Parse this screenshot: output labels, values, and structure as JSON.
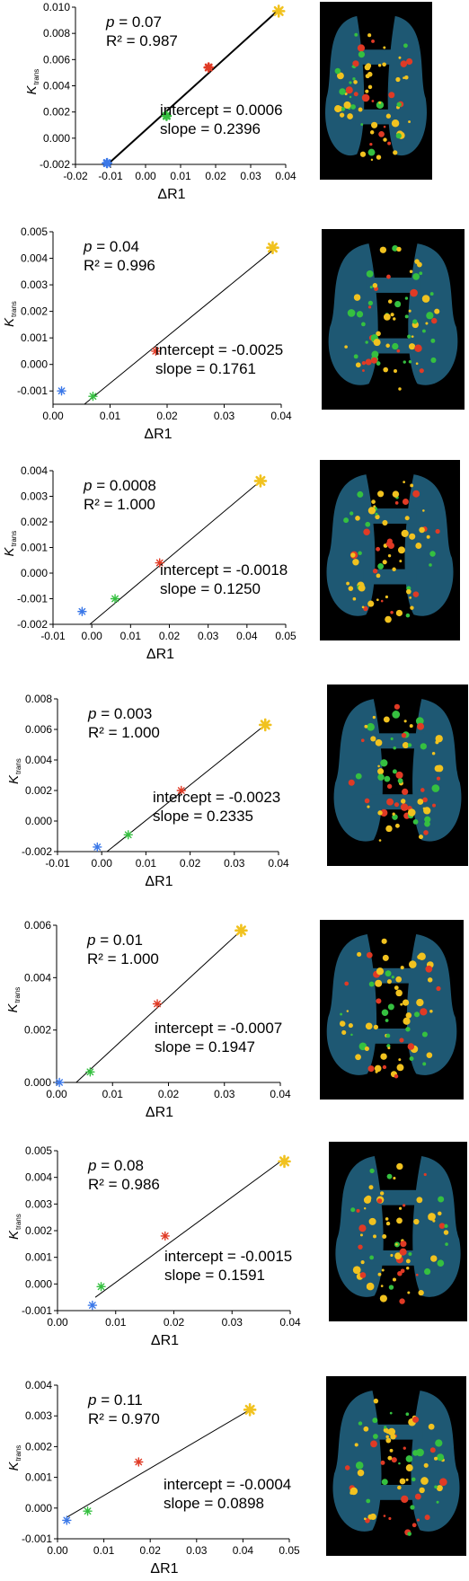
{
  "colors": {
    "blue": "#3b78e8",
    "green": "#35c040",
    "red": "#e03a25",
    "yellow": "#f1c21f",
    "brain_base": "#1e5873"
  },
  "chart_data": [
    {
      "type": "scatter",
      "xlabel": "ΔR1",
      "ylabel": "K",
      "ylabel_sub": "trans",
      "xlim": [
        -0.02,
        0.04
      ],
      "ylim": [
        -0.002,
        0.01
      ],
      "xticks": [
        "-0.02",
        "-0.01",
        "0.00",
        "0.01",
        "0.02",
        "0.03",
        "0.04"
      ],
      "yticks": [
        "-0.002",
        "0.000",
        "0.002",
        "0.004",
        "0.006",
        "0.008",
        "0.010"
      ],
      "points": [
        {
          "x": -0.011,
          "y": -0.0019,
          "color": "blue"
        },
        {
          "x": 0.006,
          "y": 0.0017,
          "color": "green"
        },
        {
          "x": 0.018,
          "y": 0.0054,
          "color": "red"
        },
        {
          "x": 0.038,
          "y": 0.0097,
          "color": "yellow"
        }
      ],
      "fit_line": {
        "x1": -0.01,
        "y1": -0.0018,
        "x2": 0.038,
        "y2": 0.0098,
        "width": 2
      },
      "p_label": "p",
      "p_text": " = 0.07",
      "r2_text": "R² = 0.987",
      "intercept_text": "intercept = 0.0006",
      "slope_text": "slope = 0.2396"
    },
    {
      "type": "scatter",
      "xlabel": "ΔR1",
      "ylabel": "K",
      "ylabel_sub": "trans",
      "xlim": [
        0.0,
        0.04
      ],
      "ylim": [
        -0.0015,
        0.005
      ],
      "xticks": [
        "0.00",
        "0.01",
        "0.02",
        "0.03",
        "0.04"
      ],
      "yticks": [
        "-0.001",
        "0.000",
        "0.001",
        "0.002",
        "0.003",
        "0.004",
        "0.005"
      ],
      "points": [
        {
          "x": 0.0015,
          "y": -0.001,
          "color": "blue"
        },
        {
          "x": 0.007,
          "y": -0.0012,
          "color": "green"
        },
        {
          "x": 0.018,
          "y": 0.0005,
          "color": "red"
        },
        {
          "x": 0.0385,
          "y": 0.0044,
          "color": "yellow"
        }
      ],
      "fit_line": {
        "x1": 0.0055,
        "y1": -0.0015,
        "x2": 0.0385,
        "y2": 0.0043,
        "width": 1
      },
      "p_label": "p",
      "p_text": " = 0.04",
      "r2_text": "R² = 0.996",
      "intercept_text": "intercept = -0.0025",
      "slope_text": "slope = 0.1761"
    },
    {
      "type": "scatter",
      "xlabel": "ΔR1",
      "ylabel": "K",
      "ylabel_sub": "trans",
      "xlim": [
        -0.01,
        0.05
      ],
      "ylim": [
        -0.002,
        0.004
      ],
      "xticks": [
        "-0.01",
        "0.00",
        "0.01",
        "0.02",
        "0.03",
        "0.04",
        "0.05"
      ],
      "yticks": [
        "-0.002",
        "-0.001",
        "0.000",
        "0.001",
        "0.002",
        "0.003",
        "0.004"
      ],
      "points": [
        {
          "x": -0.0025,
          "y": -0.0015,
          "color": "blue"
        },
        {
          "x": 0.006,
          "y": -0.001,
          "color": "green"
        },
        {
          "x": 0.0175,
          "y": 0.0004,
          "color": "red"
        },
        {
          "x": 0.0435,
          "y": 0.0036,
          "color": "yellow"
        }
      ],
      "fit_line": {
        "x1": -0.0005,
        "y1": -0.002,
        "x2": 0.0435,
        "y2": 0.0036,
        "width": 1
      },
      "p_label": "p",
      "p_text": " = 0.0008",
      "r2_text": "R² = 1.000",
      "intercept_text": "intercept = -0.0018",
      "slope_text": "slope = 0.1250"
    },
    {
      "type": "scatter",
      "xlabel": "ΔR1",
      "ylabel": "K",
      "ylabel_sub": "trans",
      "xlim": [
        -0.01,
        0.04
      ],
      "ylim": [
        -0.002,
        0.008
      ],
      "xticks": [
        "-0.01",
        "0.00",
        "0.01",
        "0.02",
        "0.03",
        "0.04"
      ],
      "yticks": [
        "-0.002",
        "0.000",
        "0.002",
        "0.004",
        "0.006",
        "0.008"
      ],
      "points": [
        {
          "x": -0.001,
          "y": -0.0017,
          "color": "blue"
        },
        {
          "x": 0.006,
          "y": -0.0009,
          "color": "green"
        },
        {
          "x": 0.018,
          "y": 0.002,
          "color": "red"
        },
        {
          "x": 0.037,
          "y": 0.0063,
          "color": "yellow"
        }
      ],
      "fit_line": {
        "x1": 0.0012,
        "y1": -0.002,
        "x2": 0.037,
        "y2": 0.0063,
        "width": 1
      },
      "p_label": "p",
      "p_text": " = 0.003",
      "r2_text": "R² = 1.000",
      "intercept_text": "intercept = -0.0023",
      "slope_text": "slope = 0.2335"
    },
    {
      "type": "scatter",
      "xlabel": "ΔR1",
      "ylabel": "K",
      "ylabel_sub": "trans",
      "xlim": [
        0.0,
        0.04
      ],
      "ylim": [
        0.0,
        0.006
      ],
      "xticks": [
        "0.00",
        "0.01",
        "0.02",
        "0.03",
        "0.04"
      ],
      "yticks": [
        "0.000",
        "0.002",
        "0.004",
        "0.006"
      ],
      "points": [
        {
          "x": 0.0005,
          "y": 0.0,
          "color": "blue"
        },
        {
          "x": 0.006,
          "y": 0.0004,
          "color": "green"
        },
        {
          "x": 0.018,
          "y": 0.003,
          "color": "red"
        },
        {
          "x": 0.033,
          "y": 0.0058,
          "color": "yellow"
        }
      ],
      "fit_line": {
        "x1": 0.0035,
        "y1": 0.0,
        "x2": 0.033,
        "y2": 0.0058,
        "width": 1
      },
      "p_label": "p",
      "p_text": " = 0.01",
      "r2_text": "R² = 1.000",
      "intercept_text": "intercept = -0.0007",
      "slope_text": "slope = 0.1947"
    },
    {
      "type": "scatter",
      "xlabel": "ΔR1",
      "ylabel": "K",
      "ylabel_sub": "trans",
      "xlim": [
        0.0,
        0.04
      ],
      "ylim": [
        -0.001,
        0.005
      ],
      "xticks": [
        "0.00",
        "0.01",
        "0.02",
        "0.03",
        "0.04"
      ],
      "yticks": [
        "-0.001",
        "0.000",
        "0.001",
        "0.002",
        "0.003",
        "0.004",
        "0.005"
      ],
      "points": [
        {
          "x": 0.006,
          "y": -0.0008,
          "color": "blue"
        },
        {
          "x": 0.0075,
          "y": -0.0001,
          "color": "green"
        },
        {
          "x": 0.0185,
          "y": 0.0018,
          "color": "red"
        },
        {
          "x": 0.039,
          "y": 0.0046,
          "color": "yellow"
        }
      ],
      "fit_line": {
        "x1": 0.0065,
        "y1": -0.0005,
        "x2": 0.039,
        "y2": 0.0047,
        "width": 1
      },
      "p_label": "p",
      "p_text": " = 0.08",
      "r2_text": "R² = 0.986",
      "intercept_text": "intercept = -0.0015",
      "slope_text": "slope = 0.1591"
    },
    {
      "type": "scatter",
      "xlabel": "ΔR1",
      "ylabel": "K",
      "ylabel_sub": "trans",
      "xlim": [
        0.0,
        0.05
      ],
      "ylim": [
        -0.001,
        0.004
      ],
      "xticks": [
        "0.00",
        "0.01",
        "0.02",
        "0.03",
        "0.04",
        "0.05"
      ],
      "yticks": [
        "-0.001",
        "0.000",
        "0.001",
        "0.002",
        "0.003",
        "0.004"
      ],
      "points": [
        {
          "x": 0.002,
          "y": -0.0004,
          "color": "blue"
        },
        {
          "x": 0.0065,
          "y": -0.0001,
          "color": "green"
        },
        {
          "x": 0.0175,
          "y": 0.0015,
          "color": "red"
        },
        {
          "x": 0.0415,
          "y": 0.0032,
          "color": "yellow"
        }
      ],
      "fit_line": {
        "x1": 0.002,
        "y1": -0.0003,
        "x2": 0.0415,
        "y2": 0.0032,
        "width": 1
      },
      "p_label": "p",
      "p_text": " = 0.11",
      "r2_text": "R² = 0.970",
      "intercept_text": "intercept = -0.0004",
      "slope_text": "slope = 0.0898"
    }
  ]
}
